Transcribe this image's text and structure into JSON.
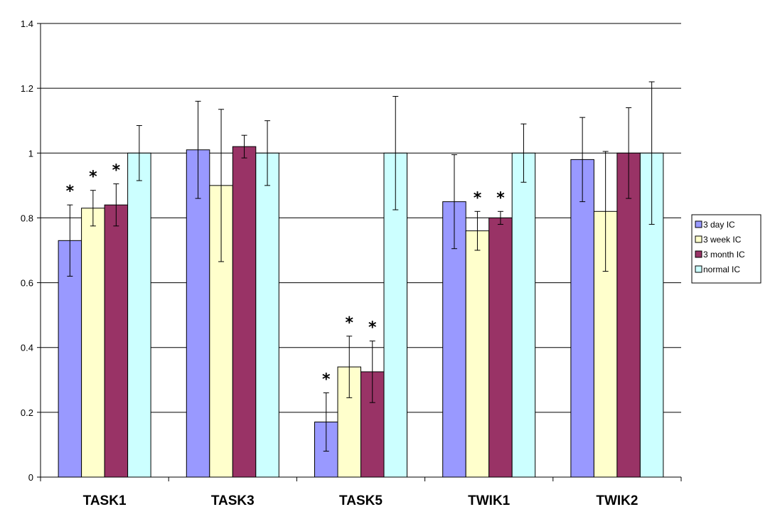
{
  "chart_data": {
    "type": "bar",
    "title": "",
    "xlabel": "",
    "ylabel": "",
    "ylim": [
      0,
      1.4
    ],
    "yticks": [
      "0",
      "0.2",
      "0.4",
      "0.6",
      "0.8",
      "1",
      "1.2",
      "1.4"
    ],
    "grid": "horizontal",
    "legend_position": "right",
    "categories": [
      "TASK1",
      "TASK3",
      "TASK5",
      "TWIK1",
      "TWIK2"
    ],
    "series": [
      {
        "name": "3 day IC",
        "color": "#9999ff",
        "values": [
          0.73,
          1.01,
          0.17,
          0.85,
          0.98
        ],
        "error": [
          0.11,
          0.15,
          0.09,
          0.145,
          0.13
        ],
        "significant": [
          true,
          false,
          true,
          false,
          false
        ]
      },
      {
        "name": "3 week IC",
        "color": "#ffffcc",
        "values": [
          0.83,
          0.9,
          0.34,
          0.76,
          0.82
        ],
        "error": [
          0.055,
          0.235,
          0.095,
          0.06,
          0.185
        ],
        "significant": [
          true,
          false,
          true,
          true,
          false
        ]
      },
      {
        "name": "3 month IC",
        "color": "#993366",
        "values": [
          0.84,
          1.02,
          0.325,
          0.8,
          1.0
        ],
        "error": [
          0.065,
          0.035,
          0.095,
          0.02,
          0.14
        ],
        "significant": [
          true,
          false,
          true,
          true,
          false
        ]
      },
      {
        "name": "normal IC",
        "color": "#ccffff",
        "values": [
          1.0,
          1.0,
          1.0,
          1.0,
          1.0
        ],
        "error": [
          0.085,
          0.1,
          0.175,
          0.09,
          0.22
        ],
        "significant": [
          false,
          false,
          false,
          false,
          false
        ]
      }
    ],
    "significance_marker": "*"
  }
}
